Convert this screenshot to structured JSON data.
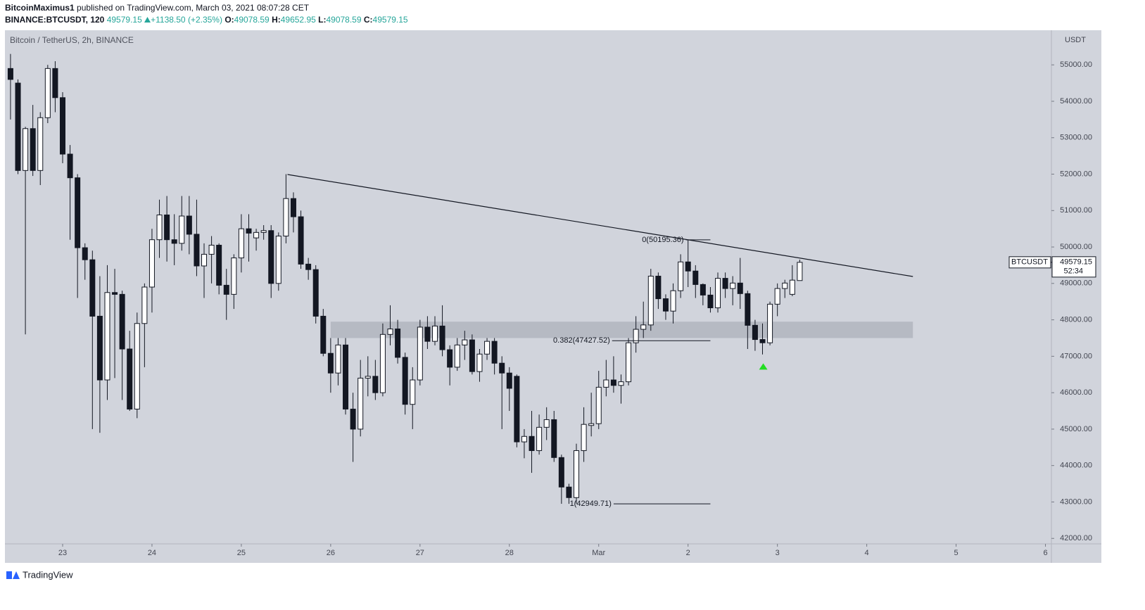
{
  "header": {
    "author": "BitcoinMaximus1",
    "published": "published on TradingView.com, March 03, 2021 08:07:28 CET",
    "symbol": "BINANCE:BTCUSDT, 120",
    "last": "49579.15",
    "change": "+1138.50 (+2.35%)",
    "ohlc": [
      {
        "key": "O:",
        "value": "49078.59"
      },
      {
        "key": "H:",
        "value": "49652.95"
      },
      {
        "key": "L:",
        "value": "49078.59"
      },
      {
        "key": "C:",
        "value": "49579.15"
      }
    ]
  },
  "footer": {
    "brand": "TradingView"
  },
  "chart_data": {
    "type": "candlestick",
    "legend_title": "Bitcoin / TetherUS, 2h, BINANCE",
    "y_unit": "USDT",
    "grid": false,
    "xlim": [
      -0.75,
      139.8
    ],
    "xticks": [
      {
        "value": 7,
        "label": "23"
      },
      {
        "value": 19,
        "label": "24"
      },
      {
        "value": 31,
        "label": "25"
      },
      {
        "value": 43,
        "label": "26"
      },
      {
        "value": 55,
        "label": "27"
      },
      {
        "value": 67,
        "label": "28"
      },
      {
        "value": 79,
        "label": "Mar"
      },
      {
        "value": 91,
        "label": "2"
      },
      {
        "value": 103,
        "label": "3"
      },
      {
        "value": 115,
        "label": "4"
      },
      {
        "value": 127,
        "label": "5"
      },
      {
        "value": 139,
        "label": "6"
      }
    ],
    "ylim": [
      41850,
      55950
    ],
    "yticks": [
      {
        "value": 42000,
        "label": "42000.00"
      },
      {
        "value": 43000,
        "label": "43000.00"
      },
      {
        "value": 44000,
        "label": "44000.00"
      },
      {
        "value": 45000,
        "label": "45000.00"
      },
      {
        "value": 46000,
        "label": "46000.00"
      },
      {
        "value": 47000,
        "label": "47000.00"
      },
      {
        "value": 48000,
        "label": "48000.00"
      },
      {
        "value": 49000,
        "label": "49000.00"
      },
      {
        "value": 50000,
        "label": "50000.00"
      },
      {
        "value": 51000,
        "label": "51000.00"
      },
      {
        "value": 52000,
        "label": "52000.00"
      },
      {
        "value": 53000,
        "label": "53000.00"
      },
      {
        "value": 54000,
        "label": "54000.00"
      },
      {
        "value": 55000,
        "label": "55000.00"
      }
    ],
    "up_color": "#ffffff",
    "down_color": "#131722",
    "background": "#d1d4dc",
    "open": [
      54900,
      54500,
      52100,
      53250,
      52100,
      53550,
      54900,
      54100,
      52550,
      51900,
      49980,
      49650,
      48100,
      46350,
      48750,
      48700,
      47200,
      45550,
      47900,
      48900,
      50200,
      50880,
      50200,
      50100,
      50850,
      50350,
      49480,
      49800,
      50050,
      48950,
      48700,
      49700,
      50500,
      50250,
      50400,
      50450,
      49000,
      50300,
      51330,
      50830,
      49530,
      49380,
      48100,
      47080,
      46540,
      47310,
      45550,
      45000,
      46400,
      46450,
      46000,
      47600,
      47750,
      46970,
      45680,
      46350,
      47800,
      47410,
      47830,
      47180,
      46700,
      47310,
      47450,
      46580,
      47060,
      47410,
      46810,
      46540,
      46450,
      44650,
      44800,
      44410,
      45050,
      45260,
      44220,
      43410,
      43120,
      44410,
      45100,
      45150,
      46150,
      46350,
      46200,
      46300,
      47370,
      47740,
      47860,
      49200,
      48580,
      48240,
      48800,
      49590,
      49340,
      48970,
      48680,
      48330,
      49140,
      48860,
      49010,
      48720,
      47850,
      47460,
      47370,
      48430,
      48860,
      48700,
      49078.59
    ],
    "high": [
      55300,
      54600,
      53300,
      53900,
      53700,
      55000,
      55100,
      54250,
      52800,
      52000,
      50100,
      49900,
      49200,
      49500,
      49400,
      48800,
      47700,
      48200,
      49000,
      50500,
      51300,
      51400,
      50900,
      51400,
      51400,
      51300,
      50100,
      50300,
      50100,
      49400,
      49800,
      50900,
      50900,
      50500,
      50600,
      50600,
      50400,
      52000,
      51500,
      51000,
      49700,
      49500,
      48300,
      47500,
      47500,
      47500,
      46000,
      46900,
      47000,
      46900,
      47900,
      48400,
      48000,
      47100,
      46700,
      48000,
      48100,
      48100,
      48400,
      47300,
      47500,
      47700,
      47600,
      47200,
      47500,
      47500,
      47000,
      46700,
      46500,
      45000,
      45500,
      45400,
      45600,
      45500,
      44300,
      43500,
      44600,
      45600,
      46000,
      46600,
      46900,
      47000,
      46500,
      47500,
      48100,
      48500,
      49400,
      49300,
      48700,
      49000,
      49800,
      50195.36,
      49500,
      49000,
      48900,
      49300,
      49300,
      49200,
      49700,
      48800,
      48000,
      47900,
      48500,
      49000,
      49100,
      49500,
      49652.95
    ],
    "low": [
      53500,
      52000,
      47600,
      51950,
      51700,
      53400,
      53700,
      52300,
      50200,
      48600,
      49100,
      45000,
      44900,
      45800,
      46400,
      45800,
      45500,
      45300,
      46700,
      48200,
      49700,
      49600,
      49500,
      49900,
      49800,
      49200,
      48600,
      49000,
      48700,
      48000,
      48300,
      49300,
      49600,
      49900,
      50200,
      48600,
      48800,
      50100,
      50400,
      49400,
      49100,
      47900,
      47000,
      46000,
      46200,
      45400,
      44100,
      44800,
      45900,
      45800,
      45900,
      47300,
      46800,
      45400,
      45000,
      46200,
      47200,
      47300,
      47000,
      46200,
      46600,
      46900,
      46500,
      46300,
      46900,
      46500,
      45000,
      45500,
      44500,
      44200,
      43800,
      44300,
      44700,
      44100,
      42950,
      42949.71,
      42950,
      44100,
      44800,
      45000,
      45900,
      46000,
      45700,
      46200,
      47100,
      47500,
      47700,
      48300,
      48000,
      47900,
      48600,
      48900,
      48600,
      48400,
      48200,
      48200,
      48600,
      48400,
      48300,
      47200,
      47150,
      47050,
      47300,
      48100,
      48600,
      48650,
      49078.59
    ],
    "close": [
      54600,
      52100,
      53250,
      52100,
      53550,
      54900,
      54100,
      52550,
      51900,
      49980,
      49650,
      48100,
      46350,
      48750,
      48700,
      47200,
      45550,
      47900,
      48900,
      50200,
      50880,
      50200,
      50100,
      50850,
      50350,
      49480,
      49800,
      50050,
      48950,
      48700,
      49700,
      50500,
      50380,
      50400,
      50450,
      49000,
      50300,
      51330,
      50830,
      49530,
      49380,
      48100,
      47080,
      46540,
      47310,
      45550,
      45000,
      46400,
      46450,
      46000,
      47600,
      47750,
      46970,
      45680,
      46350,
      47800,
      47410,
      47830,
      47180,
      46700,
      47310,
      47450,
      46580,
      47060,
      47410,
      46810,
      46540,
      46120,
      44650,
      44800,
      44410,
      45050,
      45260,
      44220,
      43410,
      43120,
      44410,
      45130,
      45150,
      46150,
      46350,
      46200,
      46300,
      47370,
      47740,
      47860,
      49200,
      48580,
      48240,
      48800,
      49590,
      49340,
      48970,
      48680,
      48330,
      49140,
      48860,
      49010,
      48720,
      47850,
      47460,
      47370,
      48430,
      48860,
      49010,
      49090,
      49579.15
    ],
    "trendline": {
      "x": [
        37.2,
        121.2
      ],
      "y": [
        51990,
        49190
      ],
      "color": "#131722"
    },
    "zone": {
      "x": [
        43,
        121.2
      ],
      "low": 47500,
      "high": 47950,
      "color": "#b2b5be"
    },
    "fib": {
      "x_end": 94,
      "levels": [
        {
          "label": "0(50195.36)",
          "value": 50195.36,
          "x_start": 90.7
        },
        {
          "label": "0.382(47427.52)",
          "value": 47427.52,
          "x_start": 80.8
        },
        {
          "label": "1(42949.71)",
          "value": 42949.71,
          "x_start": 81
        }
      ]
    },
    "marker": {
      "x": 101.1,
      "y": 46730,
      "color": "#22dd22"
    },
    "price_tag": {
      "symbol": "BTCUSDT",
      "value": 49579.15,
      "label": "49579.15",
      "countdown": "52:34"
    }
  }
}
